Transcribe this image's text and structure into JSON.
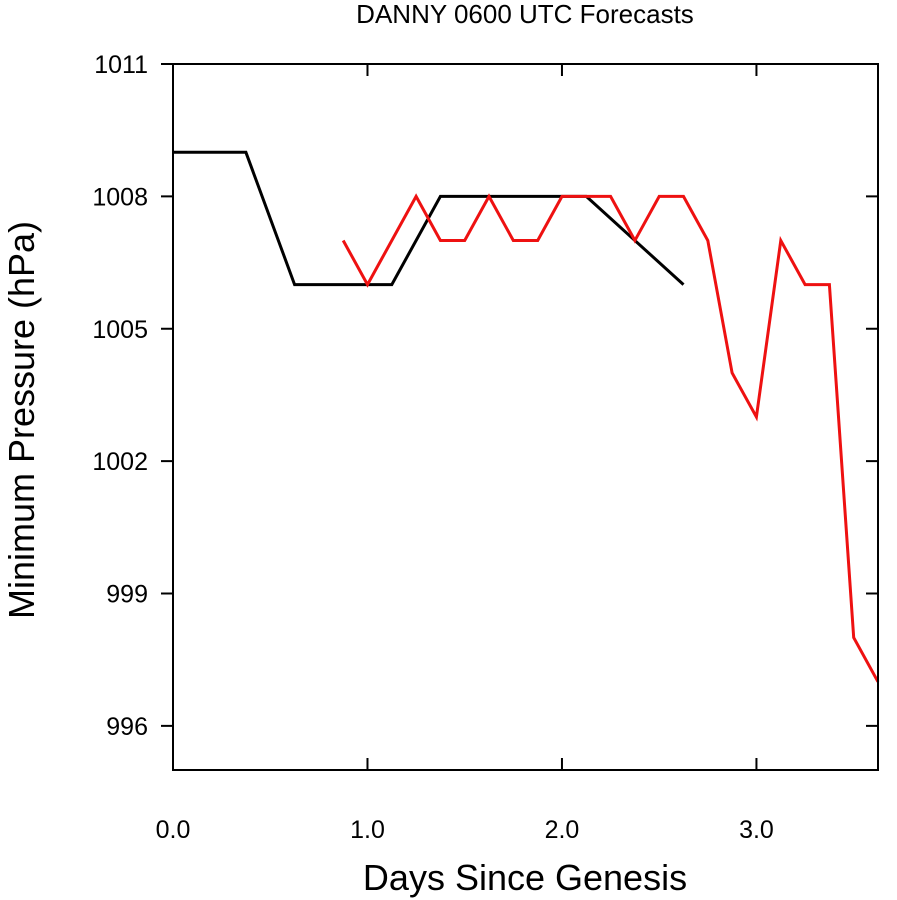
{
  "chart_data": {
    "type": "line",
    "title": "DANNY 0600 UTC Forecasts",
    "xlabel": "Days Since Genesis",
    "ylabel": "Minimum Pressure (hPa)",
    "xlim": [
      0,
      3.625
    ],
    "ylim": [
      995,
      1011
    ],
    "x_ticks": [
      {
        "value": 0,
        "label": "0.0"
      },
      {
        "value": 1,
        "label": "1.0"
      },
      {
        "value": 2,
        "label": "2.0"
      },
      {
        "value": 3,
        "label": "3.0"
      }
    ],
    "y_ticks": [
      {
        "value": 996,
        "label": "996"
      },
      {
        "value": 999,
        "label": "999"
      },
      {
        "value": 1002,
        "label": "1002"
      },
      {
        "value": 1005,
        "label": "1005"
      },
      {
        "value": 1008,
        "label": "1008"
      },
      {
        "value": 1011,
        "label": "1011"
      }
    ],
    "grid": false,
    "series": [
      {
        "color": "#000000",
        "x": [
          0.0,
          0.375,
          0.625,
          1.125,
          1.375,
          2.125,
          2.625
        ],
        "y": [
          1009,
          1009,
          1006,
          1006,
          1008,
          1008,
          1006
        ]
      },
      {
        "color": "#ee1111",
        "x": [
          0.875,
          1.0,
          1.25,
          1.375,
          1.5,
          1.625,
          1.75,
          1.875,
          2.0,
          2.125,
          2.25,
          2.375,
          2.5,
          2.625,
          2.75,
          2.875,
          3.0,
          3.125,
          3.25,
          3.375,
          3.5,
          3.625
        ],
        "y": [
          1007,
          1006,
          1008,
          1007,
          1007,
          1008,
          1007,
          1007,
          1008,
          1008,
          1008,
          1007,
          1008,
          1008,
          1007,
          1004,
          1003,
          1007,
          1006,
          1006,
          998,
          997
        ]
      }
    ]
  }
}
